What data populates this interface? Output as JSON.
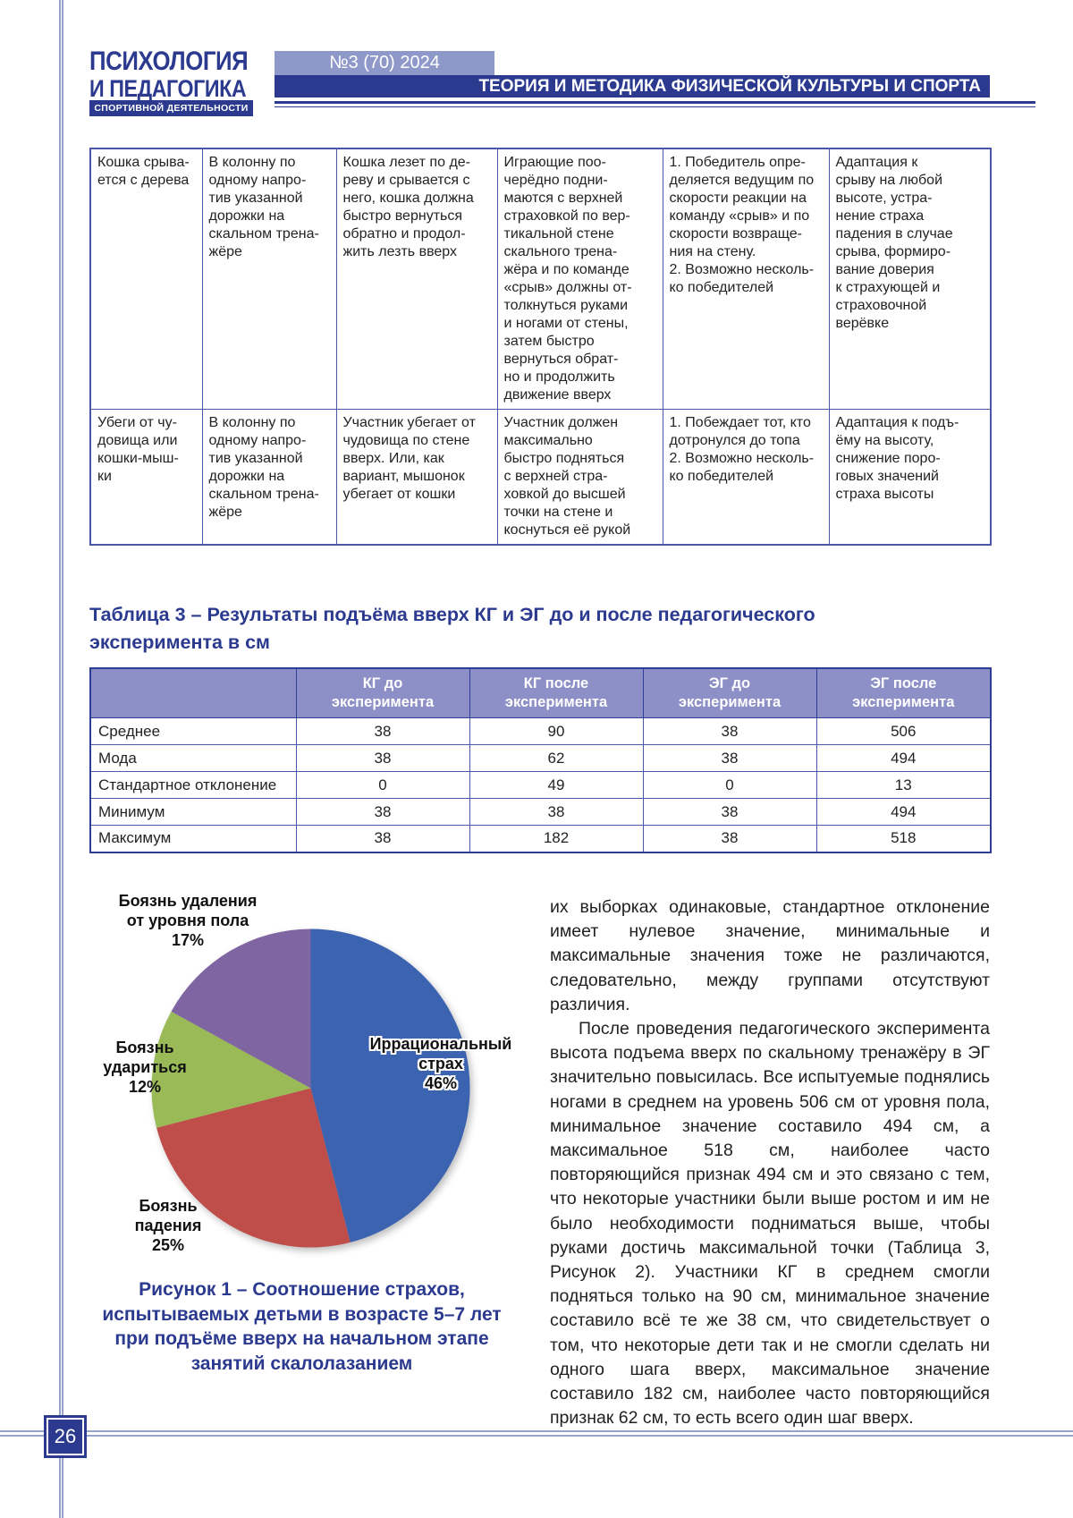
{
  "page": {
    "number": "26"
  },
  "colors": {
    "accent_dark_blue": "#2b3a8f",
    "issue_badge_bg": "#8e99c9",
    "table_header_bg": "#8d90c7",
    "table_border_blue": "#4a57a8",
    "frame_rule": "#98a3cc"
  },
  "header": {
    "logo_line1": "ПСИХОЛОГИЯ",
    "logo_line2": "И ПЕДАГОГИКА",
    "logo_line3": "СПОРТИВНОЙ ДЕЯТЕЛЬНОСТИ",
    "issue": "№3 (70) 2024",
    "section": "ТЕОРИЯ И МЕТОДИКА ФИЗИЧЕСКОЙ КУЛЬТУРЫ И СПОРТА"
  },
  "games_table": {
    "rows": [
      {
        "cells": [
          "Кошка срыва-\nется с дерева",
          "В колонну по\nодному напро-\nтив указанной\nдорожки на\nскальном трена-\nжёре",
          "Кошка лезет по де-\nреву и срывается с\nнего, кошка должна\nбыстро вернуться\nобратно и продол-\nжить лезть вверх",
          "Играющие поо-\nчерёдно подни-\nмаются с верхней\nстраховкой по вер-\nтикальной стене\nскального трена-\nжёра и по команде\n«срыв» должны от-\nтолкнуться руками\nи ногами от стены,\nзатем быстро\nвернуться обрат-\nно и продолжить\nдвижение вверх",
          "1. Победитель опре-\nделяется ведущим по\nскорости реакции на\nкоманду «срыв» и по\nскорости возвраще-\nния на стену.\n2. Возможно несколь-\nко победителей",
          "Адаптация к\nсрыву на любой\nвысоте, устра-\nнение страха\nпадения в случае\nсрыва, формиро-\nвание доверия\nк страхующей и\nстраховочной\nверёвке"
        ]
      },
      {
        "cells": [
          "Убеги от чу-\nдовища или\nкошки-мыш-\nки",
          "В колонну по\nодному напро-\nтив указанной\nдорожки на\nскальном трена-\nжёре",
          "Участник убегает от\nчудовища по стене\nвверх. Или, как\nвариант, мышонок\nубегает от кошки",
          "Участник должен\nмаксимально\nбыстро подняться\nс верхней стра-\nховкой до высшей\nточки на стене и\nкоснуться её рукой",
          "1. Побеждает тот, кто\nдотронулся до топа\n2. Возможно несколь-\nко победителей",
          "Адаптация к подъ-\nёму на высоту,\nснижение поро-\nговых значений\nстраха высоты"
        ]
      }
    ]
  },
  "table3": {
    "title": "Таблица 3 – Результаты подъёма вверх КГ и ЭГ до и после педагогического\nэксперимента в см",
    "col_headers": [
      "КГ до\nэксперимента",
      "КГ после\nэксперимента",
      "ЭГ до\nэксперимента",
      "ЭГ после\nэксперимента"
    ],
    "rows": [
      {
        "label": "Среднее",
        "values": [
          "38",
          "90",
          "38",
          "506"
        ]
      },
      {
        "label": "Мода",
        "values": [
          "38",
          "62",
          "38",
          "494"
        ]
      },
      {
        "label": "Стандартное отклонение",
        "values": [
          "0",
          "49",
          "0",
          "13"
        ]
      },
      {
        "label": "Минимум",
        "values": [
          "38",
          "38",
          "38",
          "494"
        ]
      },
      {
        "label": "Максимум",
        "values": [
          "38",
          "182",
          "38",
          "518"
        ]
      }
    ]
  },
  "chart_data": {
    "type": "pie",
    "labels": [
      "Иррациональный\nстрах",
      "Боязнь\nпадения",
      "Боязнь\nудариться",
      "Боязнь удаления\nот уровня пола"
    ],
    "values": [
      46,
      25,
      12,
      17
    ],
    "unit": "%",
    "colors": [
      "#3b63b0",
      "#bf4e4b",
      "#9aba58",
      "#7f65a1"
    ],
    "start_angle_deg": 0,
    "direction": "clockwise",
    "legend_position": "none",
    "title": "Рисунок 1 – Соотношение страхов,\nиспытываемых детьми в возрасте 5–7 лет\nпри подъёме вверх на начальном этапе\nзанятий скалолазанием"
  },
  "body": {
    "p1": "их выборках одинаковые, стандартное отклонение имеет нулевое значение, минимальные и максимальные значения тоже не различаются, следовательно, между группами отсутствуют различия.",
    "p2": "После проведения педагогического эксперимента высота подъема вверх по скальному тренажёру в ЭГ значительно повысилась. Все испытуемые поднялись ногами в среднем на уровень 506 см от уровня пола, минимальное значение составило 494 см, а максимальное 518 см, наиболее часто повторяющийся признак 494 см и это связано с тем, что некоторые участники были выше ростом и им не было необходимости подниматься выше, чтобы руками достичь максимальной точки (Таблица 3, Рисунок 2). Участники КГ в среднем смогли подняться только на 90 см, минимальное значение составило всё те же 38 см, что свидетельствует о том, что некоторые дети так и не смогли сделать ни одного шага вверх, максимальное значение составило 182 см, наиболее часто повторяющийся признак 62 см, то есть всего один шаг вверх."
  }
}
